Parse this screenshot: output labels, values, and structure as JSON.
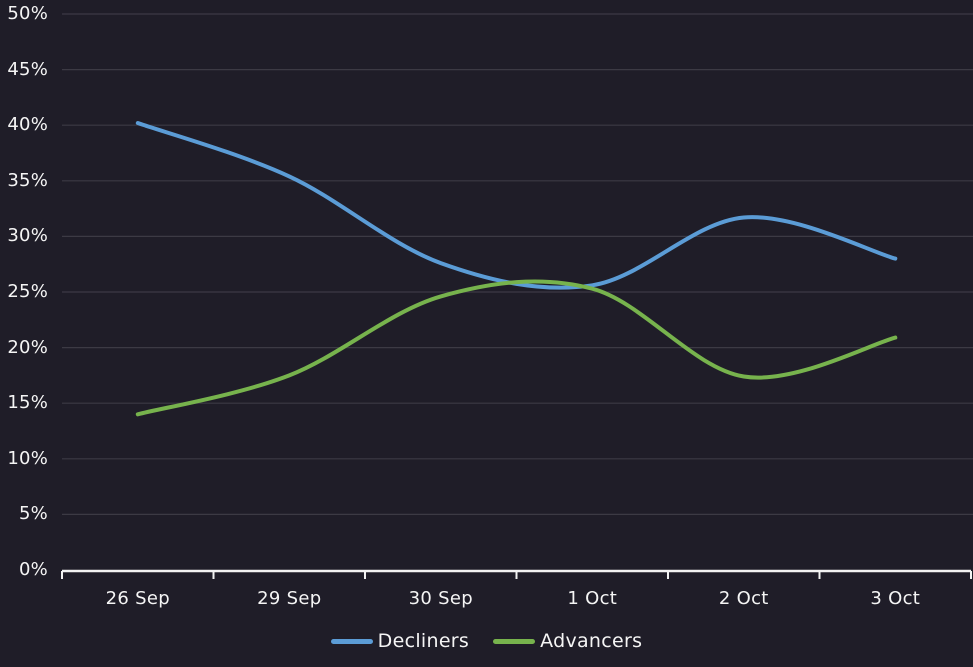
{
  "chart_data": {
    "type": "line",
    "categories": [
      "26 Sep",
      "29 Sep",
      "30 Sep",
      "1 Oct",
      "2 Oct",
      "3 Oct"
    ],
    "series": [
      {
        "name": "Decliners",
        "color": "#5b9cd6",
        "values": [
          40.2,
          35.4,
          27.6,
          25.6,
          31.7,
          28.0
        ]
      },
      {
        "name": "Advancers",
        "color": "#77b34d",
        "values": [
          14.0,
          17.5,
          24.6,
          25.3,
          17.4,
          20.9
        ]
      }
    ],
    "y_tick_labels": [
      "0%",
      "5%",
      "10%",
      "15%",
      "20%",
      "25%",
      "30%",
      "35%",
      "40%",
      "45%",
      "50%"
    ],
    "y_tick_values": [
      0,
      5,
      10,
      15,
      20,
      25,
      30,
      35,
      40,
      45,
      50
    ],
    "ylim": [
      0,
      50
    ],
    "xlabel": "",
    "ylabel": "",
    "title": "",
    "grid": true,
    "legend_position": "bottom",
    "line_smoothing": "catmull-rom"
  },
  "colors": {
    "background": "#1f1d28",
    "gridline": "#3c3a44",
    "axis": "#f2f2f2",
    "text": "#f5f5f5"
  }
}
